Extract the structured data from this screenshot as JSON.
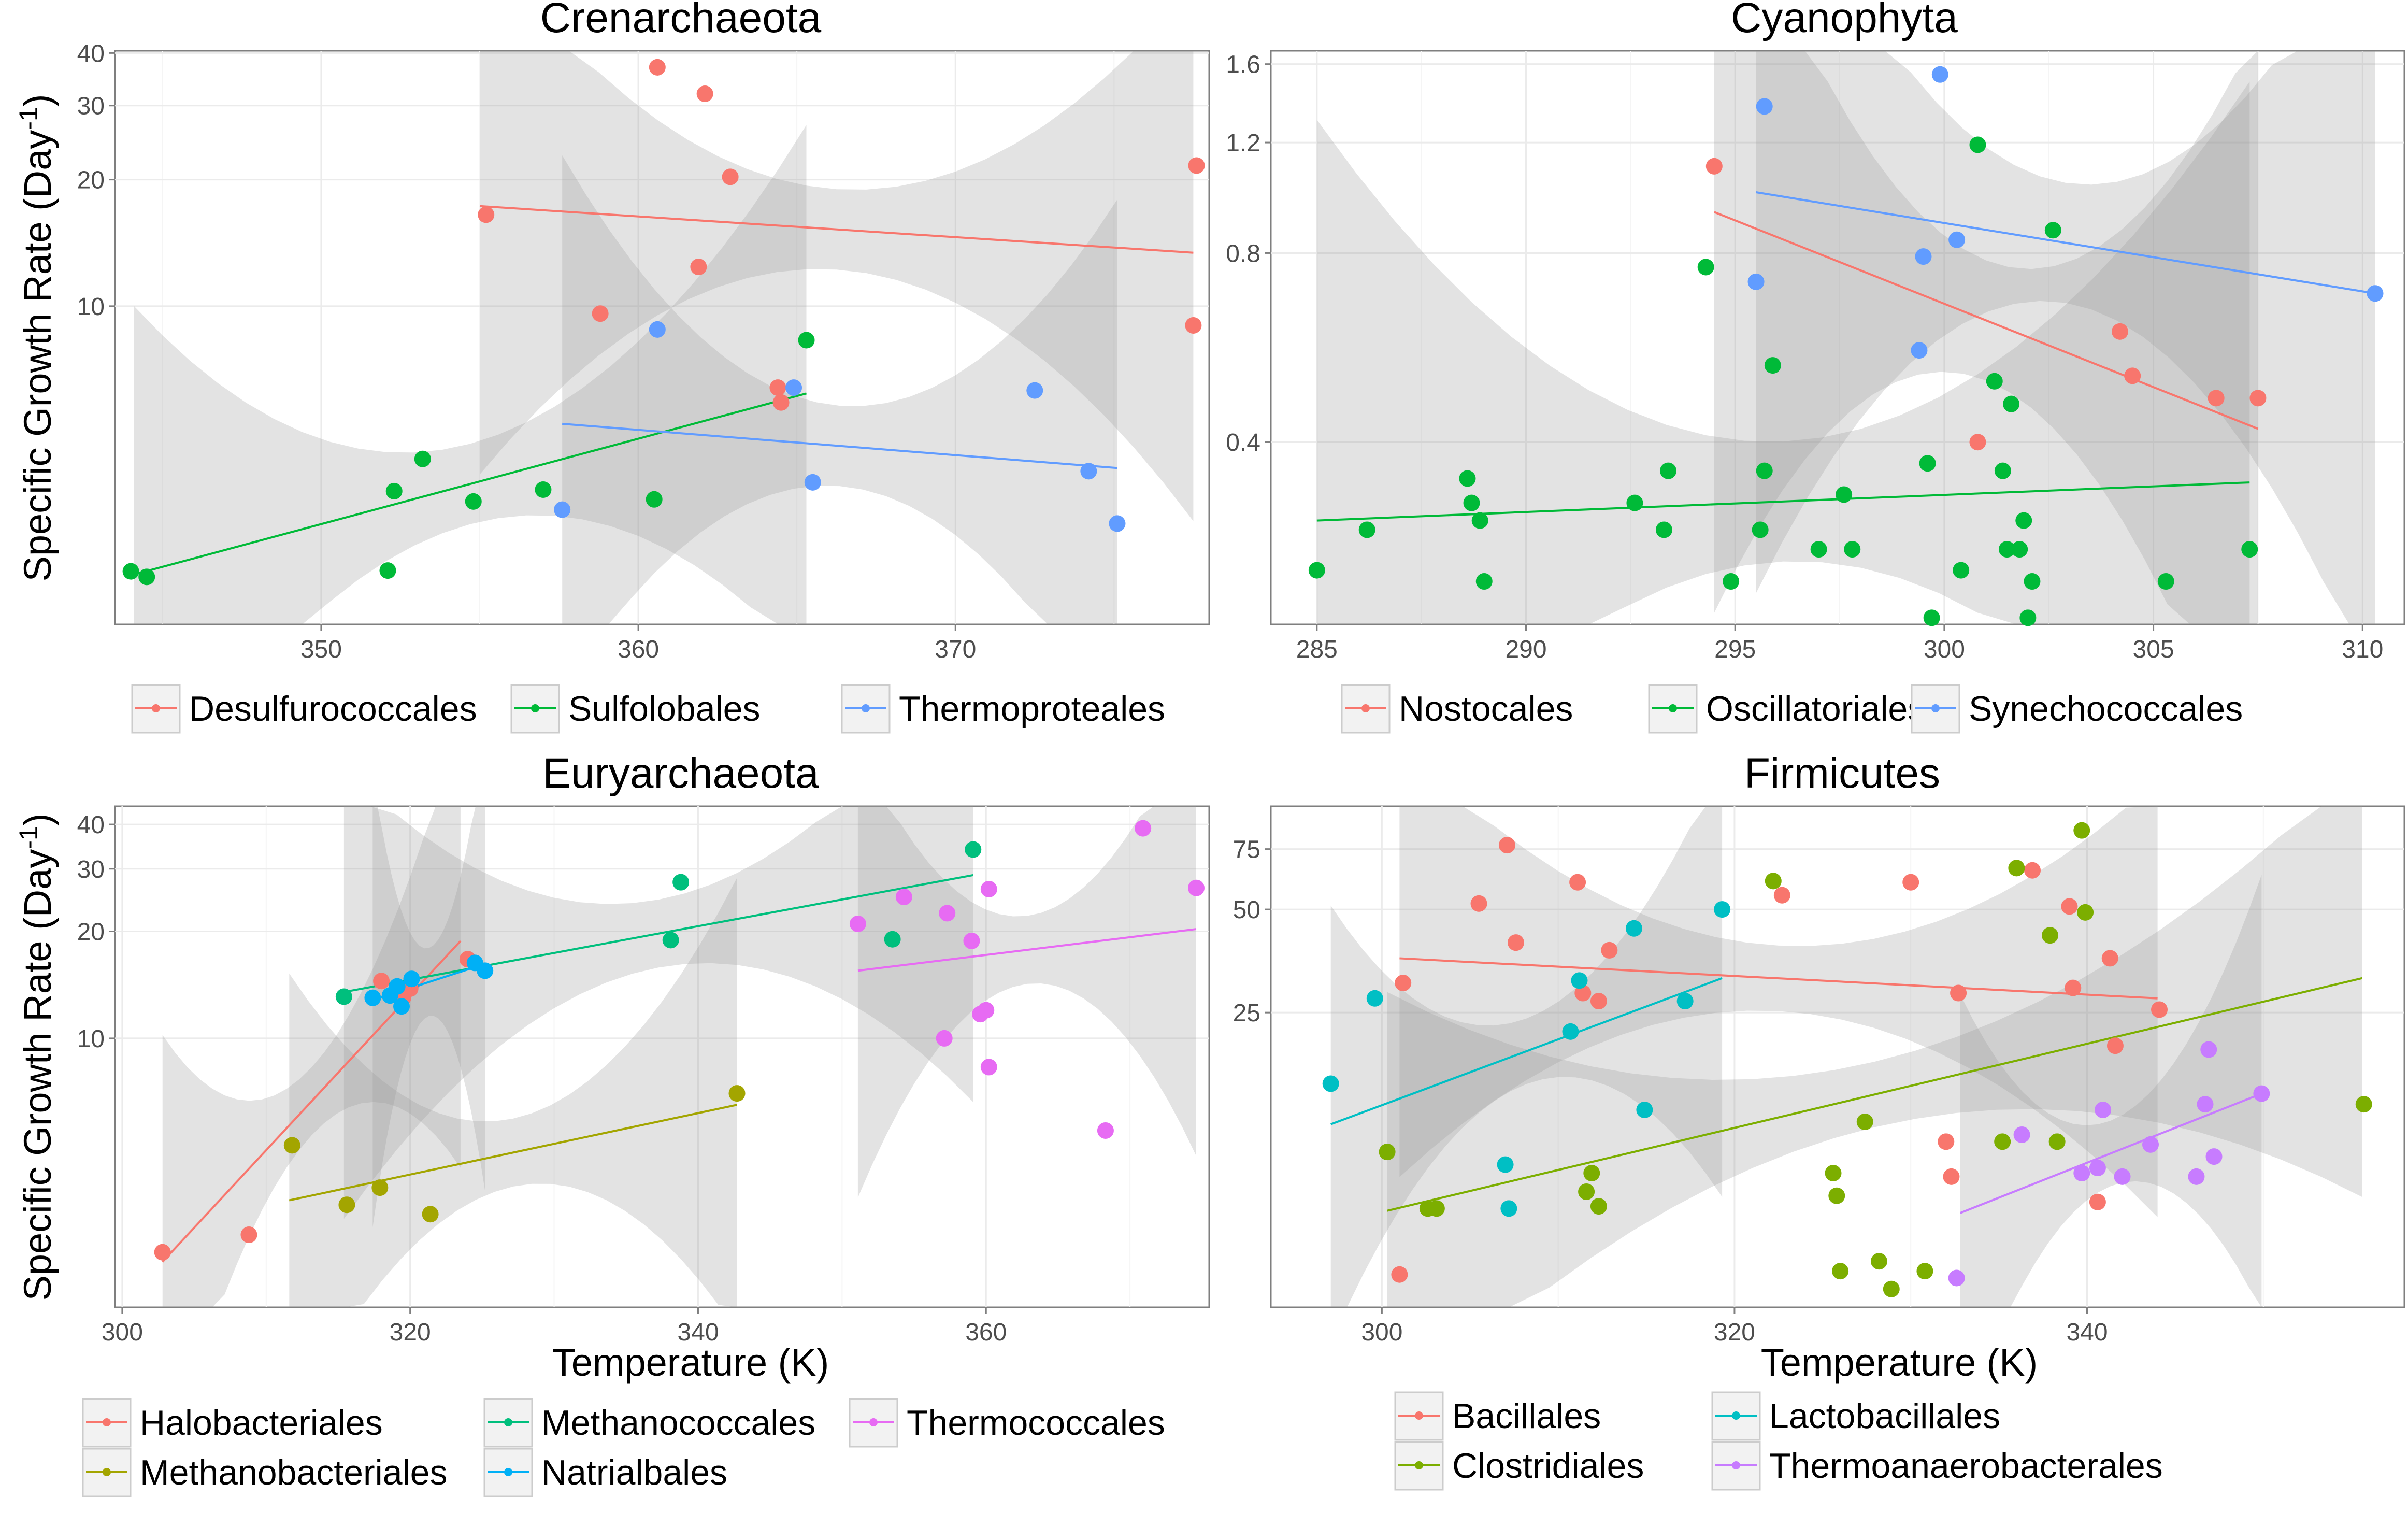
{
  "figure": {
    "ylabel_main": "Specific Growth Rate (Day",
    "ylabel_sup": "-1",
    "ylabel_tail": ")",
    "xlabel": "Temperature (K)"
  },
  "chart_data": [
    {
      "type": "scatter",
      "title": "Crenarchaeota",
      "xlabel": "",
      "ylabel": "Specific Growth Rate (Day-1)",
      "yscale": "log",
      "xlim": [
        343.5,
        378
      ],
      "ylim": [
        1.75,
        40.5
      ],
      "xticks": [
        350,
        360,
        370
      ],
      "yticks": [
        10,
        20,
        30,
        40
      ],
      "grid": true,
      "legend_position": "bottom",
      "series": [
        {
          "name": "Desulfurococcales",
          "color": "#F8766D",
          "x": [
            355.2,
            360.6,
            362.1,
            362.9,
            361.9,
            358.8,
            364.4,
            364.5,
            377.6,
            377.5
          ],
          "y": [
            16.5,
            37.0,
            32.0,
            20.3,
            12.4,
            9.6,
            6.4,
            5.9,
            21.6,
            9.0
          ],
          "fit": {
            "x": [
              355,
              377.5
            ],
            "y": [
              17.3,
              13.4
            ]
          }
        },
        {
          "name": "Sulfolobales",
          "color": "#00BA38",
          "x": [
            344.0,
            344.5,
            352.1,
            352.3,
            353.2,
            354.8,
            357.0,
            360.5,
            365.3
          ],
          "y": [
            2.34,
            2.27,
            2.35,
            3.63,
            4.33,
            3.43,
            3.66,
            3.47,
            8.3
          ],
          "fit": {
            "x": [
              344.1,
              365.3
            ],
            "y": [
              2.3,
              6.2
            ]
          }
        },
        {
          "name": "Thermoproteales",
          "color": "#619CFF",
          "x": [
            357.6,
            360.6,
            364.9,
            365.5,
            372.5,
            374.2,
            375.1
          ],
          "y": [
            3.28,
            8.8,
            6.4,
            3.81,
            6.3,
            4.05,
            3.04
          ],
          "fit": {
            "x": [
              357.6,
              375.1
            ],
            "y": [
              5.25,
              4.12
            ]
          }
        }
      ]
    },
    {
      "type": "scatter",
      "title": "Cyanophyta",
      "xlabel": "",
      "ylabel": "",
      "yscale": "log",
      "xlim": [
        283.9,
        311
      ],
      "ylim": [
        0.205,
        1.68
      ],
      "xticks": [
        285,
        290,
        295,
        300,
        305,
        310
      ],
      "yticks": [
        0.4,
        0.8,
        1.2,
        1.6
      ],
      "grid": true,
      "legend_position": "bottom",
      "series": [
        {
          "name": "Nostocales",
          "color": "#F8766D",
          "x": [
            294.5,
            300.8,
            304.2,
            304.5,
            306.5,
            307.5
          ],
          "y": [
            1.1,
            0.4,
            0.6,
            0.51,
            0.47,
            0.47
          ],
          "fit": {
            "x": [
              294.5,
              307.5
            ],
            "y": [
              0.93,
              0.42
            ]
          }
        },
        {
          "name": "Oscillatoriales",
          "color": "#00BA38",
          "x": [
            285.0,
            286.2,
            288.6,
            288.7,
            288.9,
            289.0,
            293.4,
            292.6,
            293.3,
            294.3,
            294.9,
            295.6,
            295.7,
            295.9,
            297.0,
            297.6,
            297.8,
            299.6,
            299.7,
            300.4,
            300.8,
            301.2,
            301.4,
            301.5,
            301.6,
            301.8,
            301.9,
            302.0,
            302.1,
            302.6,
            305.3,
            307.3
          ],
          "y": [
            0.25,
            0.29,
            0.35,
            0.32,
            0.3,
            0.24,
            0.36,
            0.32,
            0.29,
            0.76,
            0.24,
            0.29,
            0.36,
            0.53,
            0.27,
            0.33,
            0.27,
            0.37,
            0.21,
            0.25,
            1.19,
            0.5,
            0.36,
            0.27,
            0.46,
            0.27,
            0.3,
            0.21,
            0.24,
            0.87,
            0.24,
            0.27
          ],
          "fit": {
            "x": [
              285,
              307.3
            ],
            "y": [
              0.3,
              0.345
            ]
          }
        },
        {
          "name": "Synechococcales",
          "color": "#619CFF",
          "x": [
            295.5,
            295.7,
            299.4,
            299.5,
            299.9,
            300.3,
            310.3
          ],
          "y": [
            0.72,
            1.37,
            0.56,
            0.79,
            1.54,
            0.84,
            0.69
          ],
          "fit": {
            "x": [
              295.5,
              310.3
            ],
            "y": [
              1.0,
              0.69
            ]
          }
        }
      ]
    },
    {
      "type": "scatter",
      "title": "Euryarchaeota",
      "xlabel": "Temperature (K)",
      "ylabel": "Specific Growth Rate (Day-1)",
      "yscale": "log",
      "xlim": [
        299.5,
        375.5
      ],
      "ylim": [
        1.75,
        45
      ],
      "xticks": [
        300,
        320,
        340,
        360
      ],
      "yticks": [
        10,
        20,
        30,
        40
      ],
      "grid": true,
      "legend_position": "bottom",
      "series": [
        {
          "name": "Halobacteriales",
          "color": "#F8766D",
          "x": [
            302.8,
            308.8,
            318.0,
            319.5,
            320.0,
            324.0
          ],
          "y": [
            2.5,
            2.8,
            14.5,
            13.0,
            13.8,
            16.7
          ],
          "fit": {
            "x": [
              302.8,
              323.5
            ],
            "y": [
              2.35,
              18.8
            ]
          }
        },
        {
          "name": "Methanobacteriales",
          "color": "#A3A500",
          "x": [
            311.8,
            315.6,
            317.9,
            321.4,
            342.7
          ],
          "y": [
            5.0,
            3.4,
            3.8,
            3.2,
            7.0
          ],
          "fit": {
            "x": [
              311.6,
              342.7
            ],
            "y": [
              3.5,
              6.5
            ]
          }
        },
        {
          "name": "Methanococcales",
          "color": "#00BF7D",
          "x": [
            315.4,
            338.1,
            338.8,
            353.5,
            359.1
          ],
          "y": [
            13.1,
            18.9,
            27.5,
            19.0,
            34.0
          ],
          "fit": {
            "x": [
              315.4,
              359.1
            ],
            "y": [
              13.5,
              28.8
            ]
          }
        },
        {
          "name": "Natrialbales",
          "color": "#00B0F6",
          "x": [
            317.4,
            318.6,
            319.1,
            319.4,
            320.1,
            324.5,
            325.2
          ],
          "y": [
            13.0,
            13.2,
            14.0,
            12.3,
            14.7,
            16.3,
            15.5
          ],
          "fit": {
            "x": [
              317.4,
              325.2
            ],
            "y": [
              12.8,
              16.2
            ]
          }
        },
        {
          "name": "Thermococcales",
          "color": "#E76BF3",
          "x": [
            351.1,
            354.3,
            357.1,
            357.3,
            359.0,
            359.6,
            360.0,
            360.2,
            360.2,
            368.3,
            370.9,
            374.6
          ],
          "y": [
            21.0,
            25.0,
            10.0,
            22.5,
            18.8,
            11.7,
            12.0,
            26.3,
            8.3,
            5.5,
            39.0,
            26.5
          ],
          "fit": {
            "x": [
              351.1,
              374.6
            ],
            "y": [
              15.5,
              20.3
            ]
          }
        }
      ]
    },
    {
      "type": "scatter",
      "title": "Firmicutes",
      "xlabel": "Temperature (K)",
      "ylabel": "",
      "yscale": "log",
      "xlim": [
        293.7,
        358
      ],
      "ylim": [
        3.45,
        100
      ],
      "xticks": [
        300,
        320,
        340
      ],
      "yticks": [
        25,
        50,
        75
      ],
      "grid": true,
      "legend_position": "bottom",
      "series": [
        {
          "name": "Bacillales",
          "color": "#F8766D",
          "x": [
            301.0,
            301.2,
            305.5,
            307.1,
            307.6,
            311.1,
            311.4,
            312.3,
            312.9,
            322.7,
            330.0,
            332.0,
            332.3,
            332.7,
            336.9,
            339.0,
            339.2,
            340.6,
            341.3,
            341.6,
            344.1
          ],
          "y": [
            4.3,
            30.5,
            52.0,
            77.0,
            40.0,
            60.0,
            28.5,
            27.0,
            38.0,
            55.0,
            60.0,
            10.5,
            8.3,
            28.5,
            65.0,
            51.0,
            29.5,
            7.0,
            36.0,
            20.0,
            25.5
          ],
          "fit": {
            "x": [
              301,
              344
            ],
            "y": [
              36.0,
              27.5
            ]
          }
        },
        {
          "name": "Clostridiales",
          "color": "#7CAE00",
          "x": [
            300.3,
            302.6,
            303.1,
            311.6,
            311.9,
            312.3,
            322.2,
            325.6,
            325.8,
            326.0,
            327.4,
            328.2,
            328.9,
            330.8,
            335.2,
            336.0,
            337.9,
            338.3,
            339.7,
            339.9,
            355.7
          ],
          "y": [
            9.8,
            6.7,
            6.7,
            7.5,
            8.5,
            6.8,
            60.5,
            8.5,
            7.3,
            4.4,
            12.0,
            4.7,
            3.9,
            4.4,
            10.5,
            66.0,
            42.0,
            10.5,
            85.0,
            49.0,
            13.5
          ],
          "fit": {
            "x": [
              300.3,
              355.6
            ],
            "y": [
              6.6,
              31.5
            ]
          }
        },
        {
          "name": "Lactobacillales",
          "color": "#00BFC4",
          "x": [
            297.1,
            299.6,
            307.0,
            307.2,
            310.7,
            311.2,
            314.3,
            314.9,
            317.2,
            319.3
          ],
          "y": [
            15.5,
            27.5,
            9.0,
            6.7,
            22.0,
            31.0,
            44.0,
            13.0,
            27.0,
            50.0
          ],
          "fit": {
            "x": [
              297.1,
              319.3
            ],
            "y": [
              11.8,
              31.5
            ]
          }
        },
        {
          "name": "Thermoanaerobacterales",
          "color": "#C77CFF",
          "x": [
            332.6,
            336.3,
            339.7,
            340.6,
            340.9,
            342.0,
            343.6,
            346.2,
            346.7,
            346.9,
            347.2,
            349.9
          ],
          "y": [
            4.2,
            11.0,
            8.5,
            8.8,
            13.0,
            8.3,
            10.3,
            8.3,
            13.5,
            19.5,
            9.5,
            14.5
          ],
          "fit": {
            "x": [
              332.8,
              349.9
            ],
            "y": [
              6.5,
              14.5
            ]
          }
        }
      ]
    }
  ]
}
